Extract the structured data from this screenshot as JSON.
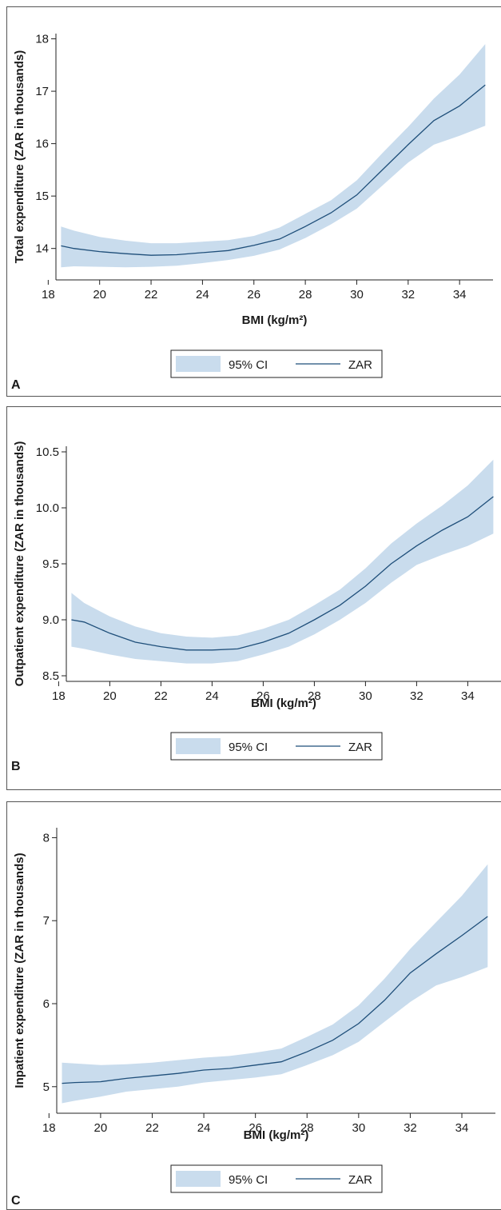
{
  "colors": {
    "ci_fill": "#c9dced",
    "line": "#1f4f7a",
    "axis": "#222222",
    "frame": "#555555"
  },
  "legend": {
    "ci_label": "95% CI",
    "line_label": "ZAR"
  },
  "chart_data": [
    {
      "panel_label": "A",
      "type": "line",
      "xlabel": "BMI (kg/m²)",
      "ylabel": "Total expenditure (ZAR in thousands)",
      "xlim": [
        18.3,
        35.3
      ],
      "ylim": [
        13.4,
        18.1
      ],
      "xticks": [
        18,
        20,
        22,
        24,
        26,
        28,
        30,
        32,
        34
      ],
      "yticks": [
        14,
        15,
        16,
        17,
        18
      ],
      "ytick_labels": [
        "14",
        "15",
        "16",
        "17",
        "18"
      ],
      "legend_position": "bottom-center",
      "series": [
        {
          "name": "ZAR",
          "x": [
            18.5,
            19,
            20,
            21,
            22,
            23,
            24,
            25,
            26,
            27,
            28,
            29,
            30,
            31,
            32,
            33,
            34,
            35
          ],
          "y": [
            14.05,
            14.0,
            13.94,
            13.9,
            13.87,
            13.88,
            13.92,
            13.96,
            14.06,
            14.18,
            14.42,
            14.68,
            15.02,
            15.5,
            15.98,
            16.44,
            16.72,
            17.12
          ],
          "lower": [
            13.64,
            13.66,
            13.65,
            13.64,
            13.65,
            13.67,
            13.72,
            13.78,
            13.86,
            13.98,
            14.2,
            14.46,
            14.76,
            15.2,
            15.64,
            15.98,
            16.15,
            16.34
          ],
          "upper": [
            14.42,
            14.34,
            14.22,
            14.15,
            14.1,
            14.1,
            14.13,
            14.16,
            14.24,
            14.4,
            14.66,
            14.92,
            15.3,
            15.82,
            16.32,
            16.86,
            17.32,
            17.9
          ]
        }
      ]
    },
    {
      "panel_label": "B",
      "type": "line",
      "xlabel": "BMI (kg/m²)",
      "ylabel": "Outpatient expenditure (ZAR in thousands)",
      "xlim": [
        18.3,
        35.3
      ],
      "ylim": [
        8.45,
        10.55
      ],
      "xticks": [
        18,
        20,
        22,
        24,
        26,
        28,
        30,
        32,
        34
      ],
      "yticks": [
        8.5,
        9.0,
        9.5,
        10.0,
        10.5
      ],
      "ytick_labels": [
        "8.5",
        "9.0",
        "9.5",
        "10.0",
        "10.5"
      ],
      "legend_position": "bottom-center",
      "series": [
        {
          "name": "ZAR",
          "x": [
            18.5,
            19,
            20,
            21,
            22,
            23,
            24,
            25,
            26,
            27,
            28,
            29,
            30,
            31,
            32,
            33,
            34,
            35
          ],
          "y": [
            9.0,
            8.98,
            8.88,
            8.8,
            8.76,
            8.73,
            8.73,
            8.74,
            8.8,
            8.88,
            9.0,
            9.13,
            9.3,
            9.5,
            9.66,
            9.8,
            9.92,
            10.1
          ],
          "lower": [
            8.76,
            8.74,
            8.69,
            8.65,
            8.63,
            8.61,
            8.61,
            8.63,
            8.69,
            8.76,
            8.87,
            9.0,
            9.15,
            9.33,
            9.49,
            9.58,
            9.66,
            9.77
          ],
          "upper": [
            9.24,
            9.15,
            9.03,
            8.94,
            8.88,
            8.85,
            8.84,
            8.86,
            8.92,
            9.0,
            9.13,
            9.27,
            9.46,
            9.68,
            9.86,
            10.02,
            10.2,
            10.43
          ]
        }
      ]
    },
    {
      "panel_label": "C",
      "type": "line",
      "xlabel": "BMI (kg/m²)",
      "ylabel": "Inpatient expenditure (ZAR in thousands)",
      "xlim": [
        18.3,
        35.3
      ],
      "ylim": [
        4.68,
        8.12
      ],
      "xticks": [
        18,
        20,
        22,
        24,
        26,
        28,
        30,
        32,
        34
      ],
      "yticks": [
        5,
        6,
        7,
        8
      ],
      "ytick_labels": [
        "5",
        "6",
        "7",
        "8"
      ],
      "legend_position": "bottom-center",
      "series": [
        {
          "name": "ZAR",
          "x": [
            18.5,
            19,
            20,
            21,
            22,
            23,
            24,
            25,
            26,
            27,
            28,
            29,
            30,
            31,
            32,
            33,
            34,
            35
          ],
          "y": [
            5.04,
            5.05,
            5.06,
            5.1,
            5.13,
            5.16,
            5.2,
            5.22,
            5.26,
            5.3,
            5.42,
            5.56,
            5.76,
            6.04,
            6.37,
            6.6,
            6.82,
            7.05
          ],
          "lower": [
            4.8,
            4.83,
            4.88,
            4.94,
            4.97,
            5.0,
            5.05,
            5.08,
            5.11,
            5.15,
            5.26,
            5.38,
            5.54,
            5.78,
            6.02,
            6.22,
            6.32,
            6.44
          ],
          "upper": [
            5.29,
            5.28,
            5.26,
            5.27,
            5.29,
            5.32,
            5.35,
            5.37,
            5.41,
            5.46,
            5.6,
            5.75,
            5.98,
            6.3,
            6.66,
            6.98,
            7.3,
            7.68
          ]
        }
      ]
    }
  ]
}
